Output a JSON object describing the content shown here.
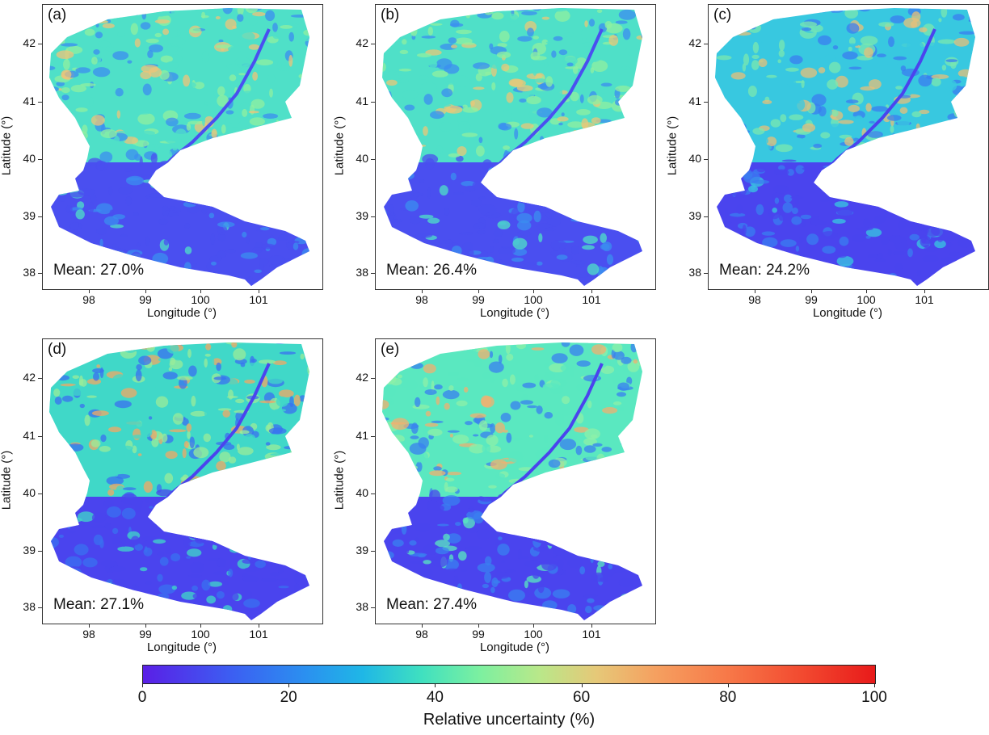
{
  "colorbar": {
    "label": "Relative uncertainty (%)",
    "ticks": [
      "0",
      "20",
      "40",
      "60",
      "80",
      "100"
    ],
    "range": [
      0,
      100
    ],
    "colormap": "rainbow (purple to red)"
  },
  "axes": {
    "xlabel": "Longitude (°)",
    "ylabel": "Latitude (°)",
    "x_ticks": [
      "98",
      "99",
      "100",
      "101"
    ],
    "y_ticks": [
      "42",
      "41",
      "40",
      "39",
      "38"
    ]
  },
  "panels": [
    {
      "id": "a",
      "label": "(a)",
      "mean": "Mean: 27.0%",
      "palette": [
        "#4a4ff0",
        "#3b8ef0",
        "#4fe0c8",
        "#8ff0a0",
        "#eec47a"
      ]
    },
    {
      "id": "b",
      "label": "(b)",
      "mean": "Mean: 26.4%",
      "palette": [
        "#4a4ff0",
        "#3b8ef0",
        "#4fe0c8",
        "#8ff0a0",
        "#e8c878"
      ]
    },
    {
      "id": "c",
      "label": "(c)",
      "mean": "Mean: 24.2%",
      "palette": [
        "#4a44ee",
        "#3a7ef0",
        "#38c8e0",
        "#7ae8b0",
        "#e6c07a"
      ]
    },
    {
      "id": "d",
      "label": "(d)",
      "mean": "Mean: 27.1%",
      "palette": [
        "#4a44ee",
        "#3a70f0",
        "#40d8c8",
        "#9aec9a",
        "#f2a864"
      ]
    },
    {
      "id": "e",
      "label": "(e)",
      "mean": "Mean: 27.4%",
      "palette": [
        "#4a44ee",
        "#3a80f0",
        "#5ae8c0",
        "#8ef0a8",
        "#f0b070"
      ]
    }
  ]
}
